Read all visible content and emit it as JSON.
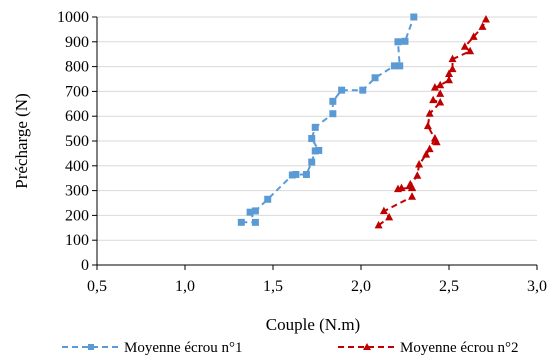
{
  "chart_data": {
    "type": "scatter",
    "xlabel": "Couple (N.m)",
    "ylabel": "Précharge (N)",
    "xlim": [
      0.5,
      3.0
    ],
    "ylim": [
      0,
      1000
    ],
    "x_ticks": [
      "0,5",
      "1,0",
      "1,5",
      "2,0",
      "2,5",
      "3,0"
    ],
    "x_tick_values": [
      0.5,
      1.0,
      1.5,
      2.0,
      2.5,
      3.0
    ],
    "y_ticks": [
      "0",
      "100",
      "200",
      "300",
      "400",
      "500",
      "600",
      "700",
      "800",
      "900",
      "1000"
    ],
    "y_tick_values": [
      0,
      100,
      200,
      300,
      400,
      500,
      600,
      700,
      800,
      900,
      1000
    ],
    "grid": "horizontal",
    "legend_position": "bottom",
    "series": [
      {
        "name": "Moyenne écrou n°1",
        "color": "#5b9bd5",
        "marker": "square",
        "line_style": "dashed",
        "points": [
          {
            "x": 1.32,
            "y": 172
          },
          {
            "x": 1.4,
            "y": 172
          },
          {
            "x": 1.37,
            "y": 213
          },
          {
            "x": 1.4,
            "y": 218
          },
          {
            "x": 1.47,
            "y": 265
          },
          {
            "x": 1.61,
            "y": 363
          },
          {
            "x": 1.63,
            "y": 365
          },
          {
            "x": 1.69,
            "y": 365
          },
          {
            "x": 1.72,
            "y": 415
          },
          {
            "x": 1.74,
            "y": 460
          },
          {
            "x": 1.76,
            "y": 462
          },
          {
            "x": 1.72,
            "y": 510
          },
          {
            "x": 1.74,
            "y": 555
          },
          {
            "x": 1.84,
            "y": 610
          },
          {
            "x": 1.84,
            "y": 660
          },
          {
            "x": 1.89,
            "y": 705
          },
          {
            "x": 2.01,
            "y": 705
          },
          {
            "x": 2.08,
            "y": 755
          },
          {
            "x": 2.19,
            "y": 803
          },
          {
            "x": 2.22,
            "y": 803
          },
          {
            "x": 2.21,
            "y": 900
          },
          {
            "x": 2.25,
            "y": 902
          },
          {
            "x": 2.3,
            "y": 1000
          }
        ]
      },
      {
        "name": "Moyenne écrou n°2",
        "color": "#c00000",
        "marker": "triangle",
        "line_style": "dashed",
        "points": [
          {
            "x": 2.1,
            "y": 160
          },
          {
            "x": 2.16,
            "y": 192
          },
          {
            "x": 2.13,
            "y": 217
          },
          {
            "x": 2.29,
            "y": 275
          },
          {
            "x": 2.29,
            "y": 310
          },
          {
            "x": 2.23,
            "y": 310
          },
          {
            "x": 2.21,
            "y": 306
          },
          {
            "x": 2.29,
            "y": 312
          },
          {
            "x": 2.28,
            "y": 325
          },
          {
            "x": 2.32,
            "y": 360
          },
          {
            "x": 2.33,
            "y": 405
          },
          {
            "x": 2.37,
            "y": 445
          },
          {
            "x": 2.39,
            "y": 467
          },
          {
            "x": 2.42,
            "y": 510
          },
          {
            "x": 2.43,
            "y": 495
          },
          {
            "x": 2.38,
            "y": 560
          },
          {
            "x": 2.39,
            "y": 610
          },
          {
            "x": 2.45,
            "y": 655
          },
          {
            "x": 2.41,
            "y": 665
          },
          {
            "x": 2.45,
            "y": 690
          },
          {
            "x": 2.42,
            "y": 715
          },
          {
            "x": 2.45,
            "y": 725
          },
          {
            "x": 2.5,
            "y": 745
          },
          {
            "x": 2.5,
            "y": 770
          },
          {
            "x": 2.52,
            "y": 790
          },
          {
            "x": 2.52,
            "y": 830
          },
          {
            "x": 2.62,
            "y": 862
          },
          {
            "x": 2.59,
            "y": 880
          },
          {
            "x": 2.64,
            "y": 920
          },
          {
            "x": 2.69,
            "y": 960
          },
          {
            "x": 2.71,
            "y": 990
          }
        ]
      }
    ]
  }
}
